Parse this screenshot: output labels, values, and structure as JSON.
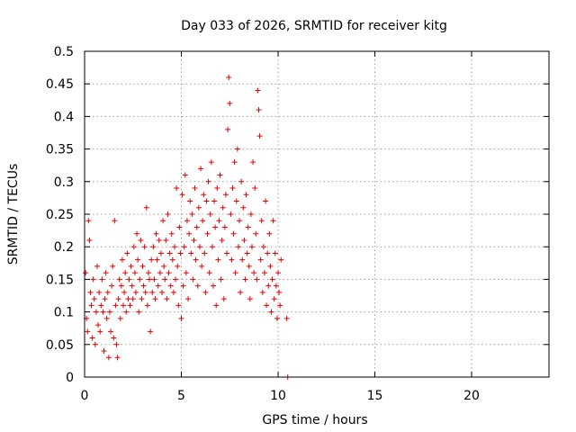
{
  "chart_data": {
    "type": "scatter",
    "title": "Day 033 of 2026, SRMTID for receiver kitg",
    "xlabel": "GPS time / hours",
    "ylabel": "SRMTID / TECUs",
    "xlim": [
      0,
      24
    ],
    "ylim": [
      0,
      0.5
    ],
    "xticks": [
      0,
      5,
      10,
      15,
      20
    ],
    "yticks": [
      0,
      0.05,
      0.1,
      0.15,
      0.2,
      0.25,
      0.3,
      0.35,
      0.4,
      0.45,
      0.5
    ],
    "xtick_labels": [
      "0",
      "5",
      "10",
      "15",
      "20"
    ],
    "ytick_labels": [
      "0",
      "0.05",
      "0.1",
      "0.15",
      "0.2",
      "0.25",
      "0.3",
      "0.35",
      "0.4",
      "0.45",
      "0.5"
    ],
    "grid": true,
    "marker": "+",
    "series": [
      {
        "name": "SRMTID",
        "color": "#e00000",
        "points": [
          [
            0.05,
            0.16
          ],
          [
            0.1,
            0.09
          ],
          [
            0.15,
            0.07
          ],
          [
            0.2,
            0.24
          ],
          [
            0.25,
            0.21
          ],
          [
            0.3,
            0.13
          ],
          [
            0.35,
            0.11
          ],
          [
            0.4,
            0.06
          ],
          [
            0.45,
            0.15
          ],
          [
            0.5,
            0.12
          ],
          [
            0.55,
            0.05
          ],
          [
            0.6,
            0.1
          ],
          [
            0.65,
            0.17
          ],
          [
            0.7,
            0.08
          ],
          [
            0.75,
            0.13
          ],
          [
            0.8,
            0.07
          ],
          [
            0.85,
            0.11
          ],
          [
            0.9,
            0.15
          ],
          [
            0.95,
            0.1
          ],
          [
            1.0,
            0.04
          ],
          [
            1.05,
            0.12
          ],
          [
            1.1,
            0.16
          ],
          [
            1.15,
            0.09
          ],
          [
            1.2,
            0.13
          ],
          [
            1.25,
            0.03
          ],
          [
            1.3,
            0.1
          ],
          [
            1.35,
            0.07
          ],
          [
            1.4,
            0.14
          ],
          [
            1.45,
            0.17
          ],
          [
            1.5,
            0.06
          ],
          [
            1.55,
            0.24
          ],
          [
            1.6,
            0.11
          ],
          [
            1.65,
            0.05
          ],
          [
            1.7,
            0.03
          ],
          [
            1.75,
            0.12
          ],
          [
            1.8,
            0.15
          ],
          [
            1.85,
            0.09
          ],
          [
            1.9,
            0.14
          ],
          [
            1.95,
            0.18
          ],
          [
            2.0,
            0.11
          ],
          [
            2.05,
            0.13
          ],
          [
            2.1,
            0.16
          ],
          [
            2.15,
            0.1
          ],
          [
            2.2,
            0.19
          ],
          [
            2.25,
            0.12
          ],
          [
            2.3,
            0.15
          ],
          [
            2.35,
            0.11
          ],
          [
            2.4,
            0.17
          ],
          [
            2.45,
            0.14
          ],
          [
            2.5,
            0.12
          ],
          [
            2.55,
            0.2
          ],
          [
            2.6,
            0.16
          ],
          [
            2.65,
            0.13
          ],
          [
            2.7,
            0.22
          ],
          [
            2.75,
            0.18
          ],
          [
            2.8,
            0.1
          ],
          [
            2.85,
            0.15
          ],
          [
            2.9,
            0.21
          ],
          [
            2.95,
            0.12
          ],
          [
            3.0,
            0.17
          ],
          [
            3.05,
            0.14
          ],
          [
            3.1,
            0.2
          ],
          [
            3.15,
            0.13
          ],
          [
            3.2,
            0.26
          ],
          [
            3.25,
            0.11
          ],
          [
            3.3,
            0.16
          ],
          [
            3.35,
            0.15
          ],
          [
            3.4,
            0.07
          ],
          [
            3.45,
            0.18
          ],
          [
            3.5,
            0.13
          ],
          [
            3.55,
            0.2
          ],
          [
            3.6,
            0.15
          ],
          [
            3.65,
            0.12
          ],
          [
            3.7,
            0.22
          ],
          [
            3.75,
            0.18
          ],
          [
            3.8,
            0.14
          ],
          [
            3.85,
            0.21
          ],
          [
            3.9,
            0.16
          ],
          [
            3.95,
            0.19
          ],
          [
            4.0,
            0.13
          ],
          [
            4.05,
            0.24
          ],
          [
            4.1,
            0.17
          ],
          [
            4.15,
            0.15
          ],
          [
            4.2,
            0.21
          ],
          [
            4.25,
            0.12
          ],
          [
            4.3,
            0.25
          ],
          [
            4.35,
            0.16
          ],
          [
            4.4,
            0.19
          ],
          [
            4.45,
            0.14
          ],
          [
            4.5,
            0.22
          ],
          [
            4.55,
            0.18
          ],
          [
            4.6,
            0.13
          ],
          [
            4.65,
            0.2
          ],
          [
            4.7,
            0.15
          ],
          [
            4.75,
            0.29
          ],
          [
            4.8,
            0.17
          ],
          [
            4.85,
            0.11
          ],
          [
            4.9,
            0.23
          ],
          [
            4.95,
            0.19
          ],
          [
            5.0,
            0.09
          ],
          [
            5.05,
            0.28
          ],
          [
            5.1,
            0.14
          ],
          [
            5.15,
            0.2
          ],
          [
            5.2,
            0.31
          ],
          [
            5.25,
            0.16
          ],
          [
            5.3,
            0.24
          ],
          [
            5.35,
            0.12
          ],
          [
            5.4,
            0.22
          ],
          [
            5.45,
            0.27
          ],
          [
            5.5,
            0.19
          ],
          [
            5.55,
            0.25
          ],
          [
            5.6,
            0.15
          ],
          [
            5.65,
            0.21
          ],
          [
            5.7,
            0.29
          ],
          [
            5.75,
            0.18
          ],
          [
            5.8,
            0.23
          ],
          [
            5.85,
            0.14
          ],
          [
            5.9,
            0.26
          ],
          [
            5.95,
            0.2
          ],
          [
            6.0,
            0.32
          ],
          [
            6.05,
            0.17
          ],
          [
            6.1,
            0.24
          ],
          [
            6.15,
            0.28
          ],
          [
            6.2,
            0.19
          ],
          [
            6.25,
            0.13
          ],
          [
            6.3,
            0.27
          ],
          [
            6.35,
            0.22
          ],
          [
            6.4,
            0.3
          ],
          [
            6.45,
            0.16
          ],
          [
            6.5,
            0.25
          ],
          [
            6.55,
            0.33
          ],
          [
            6.6,
            0.2
          ],
          [
            6.65,
            0.14
          ],
          [
            6.7,
            0.27
          ],
          [
            6.75,
            0.23
          ],
          [
            6.8,
            0.11
          ],
          [
            6.85,
            0.29
          ],
          [
            6.9,
            0.18
          ],
          [
            6.95,
            0.24
          ],
          [
            7.0,
            0.31
          ],
          [
            7.05,
            0.15
          ],
          [
            7.1,
            0.21
          ],
          [
            7.15,
            0.26
          ],
          [
            7.2,
            0.12
          ],
          [
            7.25,
            0.23
          ],
          [
            7.3,
            0.28
          ],
          [
            7.35,
            0.19
          ],
          [
            7.4,
            0.38
          ],
          [
            7.45,
            0.46
          ],
          [
            7.5,
            0.42
          ],
          [
            7.55,
            0.25
          ],
          [
            7.6,
            0.18
          ],
          [
            7.65,
            0.29
          ],
          [
            7.7,
            0.22
          ],
          [
            7.75,
            0.33
          ],
          [
            7.8,
            0.16
          ],
          [
            7.85,
            0.27
          ],
          [
            7.9,
            0.35
          ],
          [
            7.95,
            0.2
          ],
          [
            8.0,
            0.24
          ],
          [
            8.05,
            0.13
          ],
          [
            8.1,
            0.3
          ],
          [
            8.15,
            0.18
          ],
          [
            8.2,
            0.26
          ],
          [
            8.25,
            0.21
          ],
          [
            8.3,
            0.15
          ],
          [
            8.35,
            0.28
          ],
          [
            8.4,
            0.19
          ],
          [
            8.45,
            0.23
          ],
          [
            8.5,
            0.17
          ],
          [
            8.55,
            0.12
          ],
          [
            8.6,
            0.25
          ],
          [
            8.65,
            0.2
          ],
          [
            8.7,
            0.33
          ],
          [
            8.75,
            0.16
          ],
          [
            8.8,
            0.29
          ],
          [
            8.85,
            0.22
          ],
          [
            8.9,
            0.15
          ],
          [
            8.95,
            0.44
          ],
          [
            9.0,
            0.41
          ],
          [
            9.05,
            0.37
          ],
          [
            9.1,
            0.18
          ],
          [
            9.15,
            0.24
          ],
          [
            9.2,
            0.13
          ],
          [
            9.25,
            0.2
          ],
          [
            9.3,
            0.16
          ],
          [
            9.35,
            0.27
          ],
          [
            9.4,
            0.11
          ],
          [
            9.45,
            0.19
          ],
          [
            9.5,
            0.14
          ],
          [
            9.55,
            0.22
          ],
          [
            9.6,
            0.17
          ],
          [
            9.65,
            0.1
          ],
          [
            9.7,
            0.15
          ],
          [
            9.75,
            0.24
          ],
          [
            9.8,
            0.12
          ],
          [
            9.85,
            0.19
          ],
          [
            9.9,
            0.14
          ],
          [
            9.95,
            0.09
          ],
          [
            10.0,
            0.16
          ],
          [
            10.05,
            0.13
          ],
          [
            10.1,
            0.11
          ],
          [
            10.15,
            0.18
          ],
          [
            10.45,
            0.09
          ],
          [
            10.5,
            0.0
          ]
        ]
      }
    ]
  }
}
